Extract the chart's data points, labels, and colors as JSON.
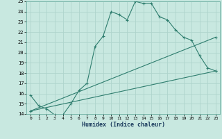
{
  "xlabel": "Humidex (Indice chaleur)",
  "ylabel": "",
  "bg_color": "#c8e8e0",
  "line_color": "#2e7d6e",
  "grid_color": "#aed4cc",
  "xlim": [
    -0.5,
    23.5
  ],
  "ylim": [
    14,
    25
  ],
  "xticks": [
    0,
    1,
    2,
    3,
    4,
    5,
    6,
    7,
    8,
    9,
    10,
    11,
    12,
    13,
    14,
    15,
    16,
    17,
    18,
    19,
    20,
    21,
    22,
    23
  ],
  "yticks": [
    14,
    15,
    16,
    17,
    18,
    19,
    20,
    21,
    22,
    23,
    24,
    25
  ],
  "curve1_x": [
    0,
    1,
    2,
    3,
    4,
    5,
    6,
    7,
    8,
    9,
    10,
    11,
    12,
    13,
    14,
    15,
    16,
    17,
    18,
    19,
    20,
    21,
    22,
    23
  ],
  "curve1_y": [
    15.8,
    14.8,
    14.5,
    13.9,
    13.9,
    15.0,
    16.3,
    17.0,
    20.6,
    21.6,
    24.0,
    23.7,
    23.2,
    25.0,
    24.8,
    24.8,
    23.5,
    23.2,
    22.2,
    21.5,
    21.2,
    19.7,
    18.5,
    18.2
  ],
  "line2_x": [
    0,
    23
  ],
  "line2_y": [
    14.3,
    21.5
  ],
  "line3_x": [
    0,
    23
  ],
  "line3_y": [
    14.3,
    18.2
  ],
  "marker": "+"
}
